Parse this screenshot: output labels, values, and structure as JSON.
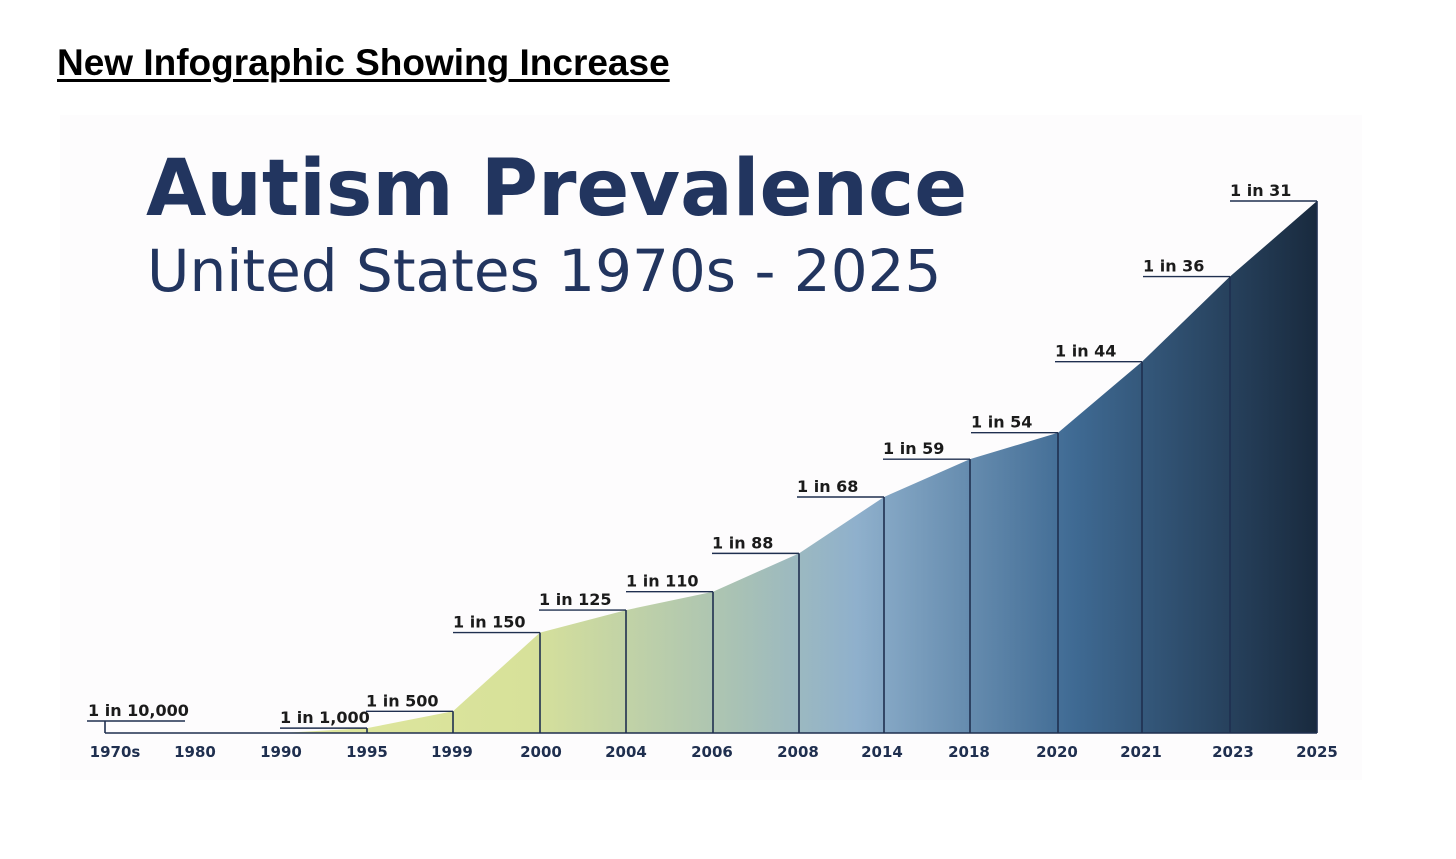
{
  "heading": "New Infographic Showing Increase",
  "chart_data": {
    "type": "area",
    "title": "Autism Prevalence",
    "subtitle": "United States 1970s - 2025",
    "categories": [
      "1970s",
      "1980",
      "1990",
      "1995",
      "1999",
      "2000",
      "2004",
      "2006",
      "2008",
      "2014",
      "2018",
      "2020",
      "2021",
      "2023",
      "2025"
    ],
    "denominators": [
      10000,
      null,
      null,
      1000,
      500,
      150,
      125,
      110,
      88,
      68,
      59,
      54,
      44,
      36,
      31
    ],
    "labels": [
      "1 in 10,000",
      "",
      "",
      "1 in 1,000",
      "1 in 500",
      "1 in 150",
      "1 in 125",
      "1 in 110",
      "1 in 88",
      "1 in 68",
      "1 in 59",
      "1 in 54",
      "1 in 44",
      "1 in 36",
      "1 in 31"
    ],
    "xlabel": "",
    "ylabel": "",
    "grid": false,
    "legend": "none",
    "colors": {
      "title": "#22355f",
      "axis": "#1f2f4f",
      "gradient_start": "#e6eca0",
      "gradient_mid": "#8fb0cc",
      "gradient_end": "#192a3e"
    }
  }
}
